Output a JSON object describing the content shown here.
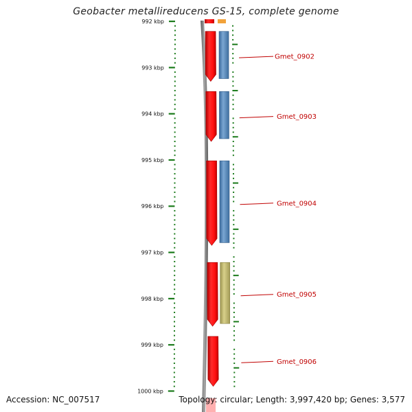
{
  "title": "Geobacter metallireducens GS-15, complete genome",
  "accession_text": "Accession: NC_007517",
  "summary_text": "Topology: circular; Length: 3,997,420 bp; Genes: 3,577",
  "colors": {
    "tick": "#1a7a1a",
    "backbone": "#808080",
    "forward_feature": "#ff1010",
    "cds_blue": "#4a7fb5",
    "cds_olive": "#bdb56a",
    "label": "#c00000"
  },
  "kbp_ticks": [
    {
      "kbp": 992,
      "label": "992 kbp"
    },
    {
      "kbp": 993,
      "label": "993 kbp"
    },
    {
      "kbp": 994,
      "label": "994 kbp"
    },
    {
      "kbp": 995,
      "label": "995 kbp"
    },
    {
      "kbp": 996,
      "label": "996 kbp"
    },
    {
      "kbp": 997,
      "label": "997 kbp"
    },
    {
      "kbp": 998,
      "label": "998 kbp"
    },
    {
      "kbp": 999,
      "label": "999 kbp"
    },
    {
      "kbp": 1000,
      "label": "1000 kbp"
    }
  ],
  "genes": [
    {
      "name": "Gmet_0902",
      "start_kbp": 992.1,
      "end_kbp": 993.3,
      "type": "blue"
    },
    {
      "name": "Gmet_0903",
      "start_kbp": 993.4,
      "end_kbp": 994.6,
      "type": "blue"
    },
    {
      "name": "Gmet_0904",
      "start_kbp": 994.9,
      "end_kbp": 996.85,
      "type": "blue"
    },
    {
      "name": "Gmet_0905",
      "start_kbp": 997.1,
      "end_kbp": 998.6,
      "type": "olive"
    },
    {
      "name": "Gmet_0906",
      "start_kbp": 998.7,
      "end_kbp": 999.9,
      "type": "none"
    }
  ]
}
